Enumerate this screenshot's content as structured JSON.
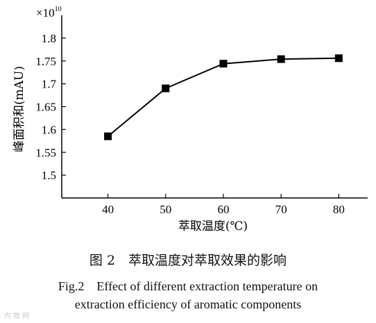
{
  "chart_data": {
    "type": "line",
    "x": [
      40,
      50,
      60,
      70,
      80
    ],
    "values": [
      1.585,
      1.69,
      1.744,
      1.754,
      1.756
    ],
    "xlabel": "萃取温度(℃)",
    "ylabel": "峰面积和(mAU)",
    "scale_note_base": "×10",
    "scale_note_exp": "10",
    "xticks": [
      "40",
      "50",
      "60",
      "70",
      "80"
    ],
    "yticks": [
      "1.5",
      "1.55",
      "1.6",
      "1.65",
      "1.7",
      "1.75",
      "1.8"
    ],
    "xlim": [
      32,
      85
    ],
    "ylim": [
      1.45,
      1.85
    ],
    "marker": "square",
    "color": "#000000",
    "grid": false
  },
  "caption": {
    "cn": "图 2　萃取温度对萃取效果的影响",
    "en_line1": "Fig.2　Effect of different extraction temperature on",
    "en_line2": "extraction efficiency of aromatic components"
  },
  "watermark": "内 牧 网"
}
